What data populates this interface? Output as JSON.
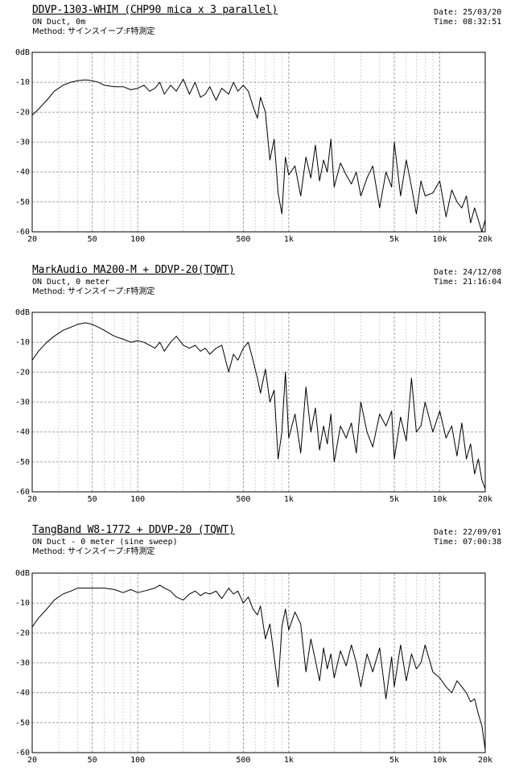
{
  "chart_data": [
    {
      "type": "line",
      "title": "DDVP-1303-WHIM (CHP90 mica x 3 parallel)",
      "subtitle_lines": [
        "ON Duct, 0m",
        "Method: サインスイープ:F特測定"
      ],
      "date": "Date: 25/03/20",
      "time": "Time: 08:32:51",
      "xscale": "log",
      "xlim": [
        20,
        20000
      ],
      "ylim": [
        -60,
        0
      ],
      "x_ticks": [
        20,
        50,
        100,
        500,
        1000,
        5000,
        10000,
        20000
      ],
      "x_tick_labels": [
        "20",
        "50",
        "100",
        "500",
        "1k",
        "5k",
        "10k",
        "20k"
      ],
      "y_ticks": [
        0,
        -10,
        -20,
        -30,
        -40,
        -50,
        -60
      ],
      "y_tick_labels": [
        "0dB",
        "-10",
        "-20",
        "-30",
        "-40",
        "-50",
        "-60"
      ],
      "grid": true,
      "series": [
        {
          "x": [
            20,
            22,
            25,
            28,
            32,
            36,
            40,
            45,
            50,
            55,
            60,
            70,
            80,
            90,
            100,
            110,
            120,
            130,
            140,
            150,
            165,
            180,
            200,
            220,
            240,
            260,
            280,
            300,
            330,
            360,
            400,
            430,
            460,
            500,
            540,
            580,
            620,
            650,
            700,
            750,
            800,
            850,
            900,
            950,
            1000,
            1100,
            1200,
            1300,
            1400,
            1500,
            1600,
            1700,
            1800,
            1900,
            2000,
            2200,
            2400,
            2600,
            2800,
            3000,
            3300,
            3600,
            4000,
            4400,
            4800,
            5000,
            5500,
            6000,
            6500,
            7000,
            7500,
            8000,
            9000,
            10000,
            11000,
            12000,
            13000,
            14000,
            15000,
            16000,
            17000,
            18000,
            19000,
            20000
          ],
          "y": [
            -21,
            -19,
            -16,
            -13,
            -11,
            -10,
            -9.5,
            -9.2,
            -9.5,
            -10,
            -11,
            -11.5,
            -11.5,
            -12.5,
            -12,
            -11,
            -13,
            -12,
            -10,
            -14,
            -11,
            -13,
            -9,
            -14,
            -10,
            -15,
            -14,
            -11.5,
            -16,
            -12,
            -14,
            -10,
            -13,
            -11,
            -13,
            -18,
            -22,
            -15,
            -20,
            -36,
            -29,
            -47,
            -54,
            -35,
            -41,
            -38,
            -48,
            -35,
            -42,
            -31,
            -43,
            -36,
            -40,
            -29,
            -45,
            -37,
            -41,
            -44,
            -40,
            -48,
            -42,
            -38,
            -52,
            -40,
            -45,
            -30,
            -48,
            -36,
            -45,
            -54,
            -43,
            -48,
            -47,
            -43,
            -55,
            -46,
            -50,
            -52,
            -48,
            -57,
            -52,
            -56,
            -60,
            -56
          ]
        }
      ]
    },
    {
      "type": "line",
      "title": "MarkAudio MA200-M + DDVP-20(TQWT)",
      "subtitle_lines": [
        "ON Duct, 0 meter",
        "Method: サインスイープ:F特測定"
      ],
      "date": "Date: 24/12/08",
      "time": "Time: 21:16:04",
      "xscale": "log",
      "xlim": [
        20,
        20000
      ],
      "ylim": [
        -60,
        0
      ],
      "x_ticks": [
        20,
        50,
        100,
        500,
        1000,
        5000,
        10000,
        20000
      ],
      "x_tick_labels": [
        "20",
        "50",
        "100",
        "500",
        "1k",
        "5k",
        "10k",
        "20k"
      ],
      "y_ticks": [
        0,
        -10,
        -20,
        -30,
        -40,
        -50,
        -60
      ],
      "y_tick_labels": [
        "0dB",
        "-10",
        "-20",
        "-30",
        "-40",
        "-50",
        "-60"
      ],
      "grid": true,
      "series": [
        {
          "x": [
            20,
            22,
            25,
            28,
            32,
            36,
            40,
            45,
            50,
            55,
            60,
            70,
            80,
            90,
            100,
            110,
            120,
            130,
            140,
            150,
            165,
            180,
            200,
            220,
            240,
            260,
            280,
            300,
            330,
            360,
            400,
            430,
            460,
            500,
            540,
            580,
            620,
            650,
            700,
            750,
            800,
            850,
            900,
            950,
            1000,
            1100,
            1200,
            1300,
            1400,
            1500,
            1600,
            1700,
            1800,
            1900,
            2000,
            2200,
            2400,
            2600,
            2800,
            3000,
            3300,
            3600,
            4000,
            4400,
            4800,
            5000,
            5500,
            6000,
            6500,
            7000,
            7500,
            8000,
            9000,
            10000,
            11000,
            12000,
            13000,
            14000,
            15000,
            16000,
            17000,
            18000,
            19000,
            20000
          ],
          "y": [
            -16,
            -13,
            -10,
            -8,
            -6,
            -5,
            -4,
            -3.5,
            -4,
            -5,
            -6,
            -8,
            -9,
            -10,
            -9.5,
            -10,
            -11,
            -12,
            -10,
            -13,
            -10,
            -8,
            -11,
            -12,
            -11,
            -13,
            -12,
            -14,
            -12,
            -11,
            -20,
            -14,
            -16,
            -12,
            -10,
            -16,
            -22,
            -27,
            -19,
            -30,
            -26,
            -49,
            -40,
            -20,
            -42,
            -34,
            -47,
            -25,
            -40,
            -32,
            -46,
            -38,
            -44,
            -34,
            -50,
            -38,
            -42,
            -37,
            -47,
            -30,
            -40,
            -45,
            -34,
            -38,
            -33,
            -49,
            -35,
            -43,
            -22,
            -40,
            -38,
            -30,
            -40,
            -33,
            -42,
            -38,
            -48,
            -37,
            -49,
            -44,
            -54,
            -49,
            -56,
            -59
          ]
        }
      ]
    },
    {
      "type": "line",
      "title": "TangBand W8-1772 + DDVP-20 (TQWT)",
      "subtitle_lines": [
        "ON Duct - 0 meter (sine sweep)",
        "Method: サインスイープ:F特測定"
      ],
      "date": "Date: 22/09/01",
      "time": "Time: 07:00:38",
      "xscale": "log",
      "xlim": [
        20,
        20000
      ],
      "ylim": [
        -60,
        0
      ],
      "x_ticks": [
        20,
        50,
        100,
        500,
        1000,
        5000,
        10000,
        20000
      ],
      "x_tick_labels": [
        "20",
        "50",
        "100",
        "500",
        "1k",
        "5k",
        "10k",
        "20k"
      ],
      "y_ticks": [
        0,
        -10,
        -20,
        -30,
        -40,
        -50,
        -60
      ],
      "y_tick_labels": [
        "0dB",
        "-10",
        "-20",
        "-30",
        "-40",
        "-50",
        "-60"
      ],
      "grid": true,
      "series": [
        {
          "x": [
            20,
            22,
            25,
            28,
            32,
            36,
            40,
            45,
            50,
            55,
            60,
            70,
            80,
            90,
            100,
            110,
            120,
            130,
            140,
            150,
            165,
            180,
            200,
            220,
            240,
            260,
            280,
            300,
            330,
            360,
            400,
            430,
            460,
            500,
            540,
            580,
            620,
            650,
            700,
            750,
            800,
            850,
            900,
            950,
            1000,
            1100,
            1200,
            1300,
            1400,
            1500,
            1600,
            1700,
            1800,
            1900,
            2000,
            2200,
            2400,
            2600,
            2800,
            3000,
            3300,
            3600,
            4000,
            4400,
            4800,
            5000,
            5500,
            6000,
            6500,
            7000,
            7500,
            8000,
            9000,
            10000,
            11000,
            12000,
            13000,
            14000,
            15000,
            16000,
            17000,
            18000,
            19000,
            20000
          ],
          "y": [
            -18,
            -15,
            -12,
            -9,
            -7,
            -6,
            -5,
            -5,
            -5,
            -5,
            -5,
            -5.5,
            -6.5,
            -5.5,
            -6.5,
            -6,
            -5.5,
            -5,
            -4,
            -5,
            -6,
            -8,
            -9,
            -7,
            -6,
            -7.5,
            -6.5,
            -7,
            -6,
            -8.5,
            -5,
            -7,
            -6,
            -10,
            -8,
            -12,
            -14,
            -11,
            -22,
            -17,
            -28,
            -38,
            -18,
            -12,
            -19,
            -13,
            -17,
            -33,
            -22,
            -29,
            -36,
            -25,
            -32,
            -27,
            -35,
            -26,
            -31,
            -24,
            -30,
            -38,
            -27,
            -33,
            -25,
            -42,
            -28,
            -38,
            -24,
            -36,
            -27,
            -32,
            -30,
            -24,
            -33,
            -35,
            -38,
            -40,
            -36,
            -38,
            -40,
            -43,
            -42,
            -47,
            -51,
            -59
          ]
        }
      ]
    }
  ]
}
